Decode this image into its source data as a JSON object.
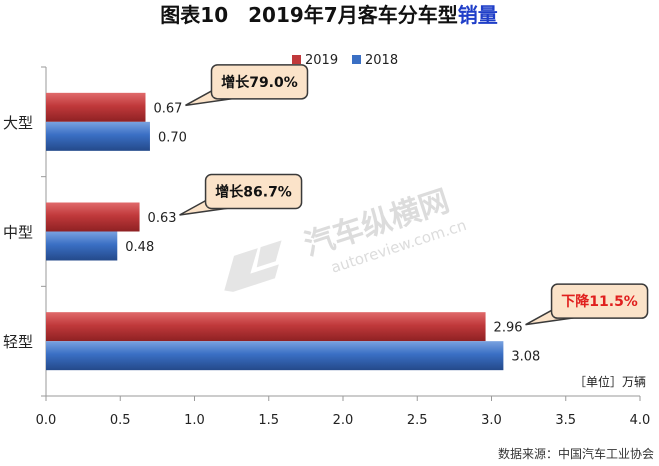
{
  "title": {
    "main": "图表10　2019年7月客车分车型",
    "accent": "销量"
  },
  "unit": "［单位］万辆",
  "source": "数据来源：中国汽车工业协会",
  "watermark": {
    "brand": "汽车纵横网",
    "url": "autoreview.com.cn"
  },
  "colors": {
    "series_2019": "#c0393b",
    "series_2018": "#3a6fc4",
    "callout_fill": "#fbe3c9",
    "callout_stroke": "#3a3a3a",
    "title_accent": "#1f3ec8",
    "down_text": "#e0201e"
  },
  "chart_data": {
    "type": "bar",
    "orientation": "horizontal",
    "categories": [
      "大型",
      "中型",
      "轻型"
    ],
    "series": [
      {
        "name": "2019",
        "values": [
          0.67,
          0.63,
          2.96
        ],
        "labels": [
          "0.67",
          "0.63",
          "2.96"
        ]
      },
      {
        "name": "2018",
        "values": [
          0.7,
          0.48,
          3.08
        ],
        "labels": [
          "0.70",
          "0.48",
          "3.08"
        ]
      }
    ],
    "xlim": [
      0,
      4.0
    ],
    "xticks": [
      "0.0",
      "0.5",
      "1.0",
      "1.5",
      "2.0",
      "2.5",
      "3.0",
      "3.5",
      "4.0"
    ],
    "legend_position": "top-right",
    "grid": false,
    "annotations": [
      {
        "category": "大型",
        "text": "增长79.0%",
        "direction": "up"
      },
      {
        "category": "中型",
        "text": "增长86.7%",
        "direction": "up"
      },
      {
        "category": "轻型",
        "text": "下降11.5%",
        "direction": "down"
      }
    ]
  }
}
